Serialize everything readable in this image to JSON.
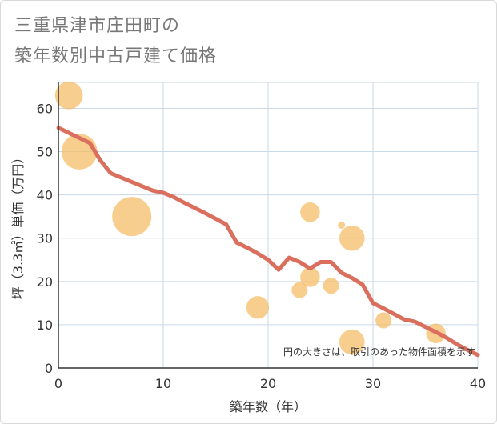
{
  "chart_data": {
    "type": "scatter",
    "title": "三重県津市庄田町の\n築年数別中古戸建て価格",
    "xlabel": "築年数（年）",
    "ylabel": "坪（3.3㎡）単価（万円）",
    "xlim": [
      0,
      40
    ],
    "ylim": [
      0,
      66
    ],
    "xticks": [
      0,
      10,
      20,
      30,
      40
    ],
    "yticks": [
      0,
      10,
      20,
      30,
      40,
      50,
      60
    ],
    "note": "円の大きさは、取引のあった物件面積を示す",
    "points": [
      {
        "x": 1,
        "y": 63,
        "size": 3
      },
      {
        "x": 2,
        "y": 50,
        "size": 5
      },
      {
        "x": 7,
        "y": 35,
        "size": 6
      },
      {
        "x": 19,
        "y": 14,
        "size": 2
      },
      {
        "x": 23,
        "y": 18,
        "size": 1
      },
      {
        "x": 24,
        "y": 36,
        "size": 1.5
      },
      {
        "x": 24,
        "y": 21,
        "size": 1.5
      },
      {
        "x": 26,
        "y": 19,
        "size": 1
      },
      {
        "x": 27,
        "y": 33,
        "size": 0.2
      },
      {
        "x": 28,
        "y": 30,
        "size": 2.5
      },
      {
        "x": 28,
        "y": 6,
        "size": 2.5
      },
      {
        "x": 31,
        "y": 11,
        "size": 1
      },
      {
        "x": 36,
        "y": 8,
        "size": 1.5
      }
    ],
    "trend": {
      "x": [
        0,
        3,
        4,
        5,
        6,
        7,
        8,
        9,
        10,
        11,
        12,
        13,
        14,
        15,
        16,
        17,
        18,
        19,
        20,
        21,
        22,
        23,
        24,
        25,
        26,
        27,
        28,
        29,
        30,
        31,
        32,
        33,
        34,
        35,
        36,
        37,
        38,
        39,
        40
      ],
      "y": [
        55.5,
        52,
        48,
        45,
        44,
        43,
        42,
        41,
        40.5,
        39.5,
        38.2,
        37,
        35.8,
        34.5,
        33.2,
        29,
        27.8,
        26.5,
        25,
        22.7,
        25.5,
        24.5,
        23,
        24.5,
        24.5,
        22,
        20.8,
        19.3,
        15,
        13.8,
        12.5,
        11.2,
        10.7,
        9.5,
        8.3,
        7,
        5.5,
        4.2,
        3
      ]
    },
    "colors": {
      "bubble": "#f5b95f",
      "trend": "#d96f5c",
      "grid": "#c9d9e6",
      "axis": "#333333"
    }
  }
}
